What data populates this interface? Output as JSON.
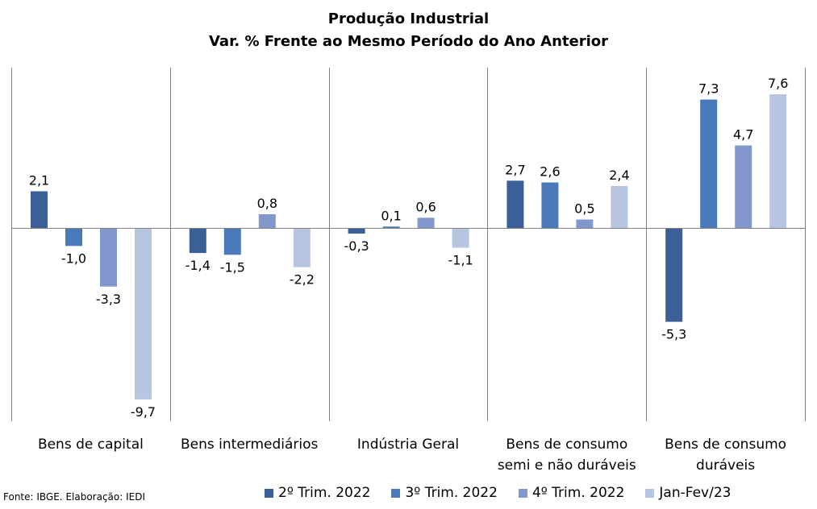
{
  "title": "Produção Industrial",
  "subtitle": "Var. % Frente ao Mesmo Período do Ano Anterior",
  "source": "Fonte: IBGE. Elaboração: IEDI",
  "chart_data": {
    "type": "bar",
    "title": "Produção Industrial",
    "subtitle": "Var. % Frente ao Mesmo Período do Ano Anterior",
    "categories": [
      [
        "Bens de capital"
      ],
      [
        "Bens intermediários"
      ],
      [
        "Indústria Geral"
      ],
      [
        "Bens de consumo",
        "semi e não duráveis"
      ],
      [
        "Bens de consumo",
        "duráveis"
      ]
    ],
    "series": [
      {
        "name": "2º Trim. 2022",
        "color": "#3b5f97",
        "values": [
          2.1,
          -1.4,
          -0.3,
          2.7,
          -5.3
        ],
        "labels": [
          "2,1",
          "-1,4",
          "-0,3",
          "2,7",
          "-5,3"
        ]
      },
      {
        "name": "3º Trim. 2022",
        "color": "#4a7ab9",
        "values": [
          -1.0,
          -1.5,
          0.1,
          2.6,
          7.3
        ],
        "labels": [
          "-1,0",
          "-1,5",
          "0,1",
          "2,6",
          "7,3"
        ]
      },
      {
        "name": "4º Trim. 2022",
        "color": "#8297cb",
        "values": [
          -3.3,
          0.8,
          0.6,
          0.5,
          4.7
        ],
        "labels": [
          "-3,3",
          "0,8",
          "0,6",
          "0,5",
          "4,7"
        ]
      },
      {
        "name": "Jan-Fev/23",
        "color": "#b8c5e1",
        "values": [
          -9.7,
          -2.2,
          -1.1,
          2.4,
          7.6
        ],
        "labels": [
          "-9,7",
          "-2,2",
          "-1,1",
          "2,4",
          "7,6"
        ]
      }
    ],
    "ylim": [
      -10.5,
      9.0
    ],
    "grid": false,
    "legend_position": "bottom"
  }
}
